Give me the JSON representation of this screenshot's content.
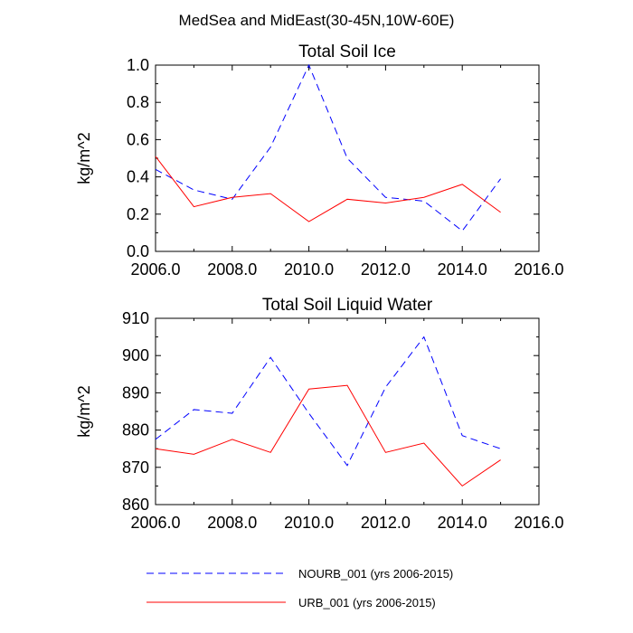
{
  "figure": {
    "title": "MedSea and MidEast(30-45N,10W-60E)"
  },
  "chart_data": [
    {
      "type": "line",
      "title": "Total Soil Ice",
      "xlabel": "",
      "ylabel": "kg/m^2",
      "xlim": [
        2006,
        2016
      ],
      "ylim": [
        0,
        1
      ],
      "x_ticks": [
        2006,
        2008,
        2010,
        2012,
        2014,
        2016
      ],
      "x_tick_labels": [
        "2006.0",
        "2008.0",
        "2010.0",
        "2012.0",
        "2014.0",
        "2016.0"
      ],
      "y_ticks": [
        0,
        0.2,
        0.4,
        0.6,
        0.8,
        1.0
      ],
      "y_tick_labels": [
        "0.0",
        "0.2",
        "0.4",
        "0.6",
        "0.8",
        "1.0"
      ],
      "grid": false,
      "x": [
        2006,
        2007,
        2008,
        2009,
        2010,
        2011,
        2012,
        2013,
        2014,
        2015
      ],
      "series": [
        {
          "name": "NOURB_001 (yrs 2006-2015)",
          "color": "#0000ff",
          "dash": "dashed",
          "values": [
            0.44,
            0.33,
            0.28,
            0.56,
            1.0,
            0.5,
            0.29,
            0.27,
            0.11,
            0.39
          ]
        },
        {
          "name": "URB_001 (yrs 2006-2015)",
          "color": "#ff0000",
          "dash": "solid",
          "values": [
            0.51,
            0.24,
            0.29,
            0.31,
            0.16,
            0.28,
            0.26,
            0.29,
            0.36,
            0.21
          ]
        }
      ]
    },
    {
      "type": "line",
      "title": "Total Soil Liquid Water",
      "xlabel": "",
      "ylabel": "kg/m^2",
      "xlim": [
        2006,
        2016
      ],
      "ylim": [
        860,
        910
      ],
      "x_ticks": [
        2006,
        2008,
        2010,
        2012,
        2014,
        2016
      ],
      "x_tick_labels": [
        "2006.0",
        "2008.0",
        "2010.0",
        "2012.0",
        "2014.0",
        "2016.0"
      ],
      "y_ticks": [
        860,
        870,
        880,
        890,
        900,
        910
      ],
      "y_tick_labels": [
        "860",
        "870",
        "880",
        "890",
        "900",
        "910"
      ],
      "grid": false,
      "x": [
        2006,
        2007,
        2008,
        2009,
        2010,
        2011,
        2012,
        2013,
        2014,
        2015
      ],
      "series": [
        {
          "name": "NOURB_001 (yrs 2006-2015)",
          "color": "#0000ff",
          "dash": "dashed",
          "values": [
            877.5,
            885.5,
            884.5,
            899.5,
            884.5,
            870.5,
            891.5,
            905,
            878.5,
            875
          ]
        },
        {
          "name": "URB_001 (yrs 2006-2015)",
          "color": "#ff0000",
          "dash": "solid",
          "values": [
            875,
            873.5,
            877.5,
            874,
            891,
            892,
            874,
            876.5,
            865,
            872
          ]
        }
      ]
    }
  ],
  "legend": {
    "placement": "bottom",
    "items": [
      {
        "label": "NOURB_001 (yrs 2006-2015)",
        "color": "#0000ff",
        "dash": "dashed"
      },
      {
        "label": "URB_001 (yrs 2006-2015)",
        "color": "#ff0000",
        "dash": "solid"
      }
    ]
  }
}
